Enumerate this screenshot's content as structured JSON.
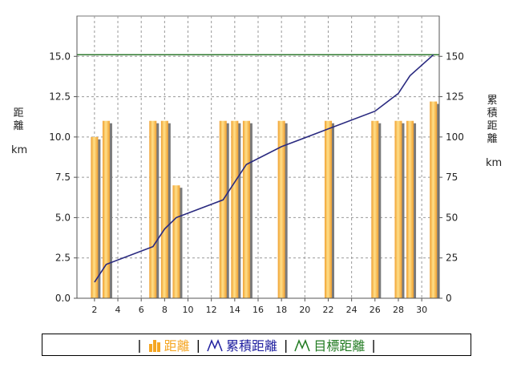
{
  "left_axis_label": {
    "chars": [
      "距",
      "離"
    ],
    "unit": "km"
  },
  "right_axis_label": {
    "chars": [
      "累",
      "積",
      "距",
      "離"
    ],
    "unit": "km"
  },
  "legend": {
    "separator": "|",
    "items": [
      {
        "label": "距離",
        "icon": "bar-chart-icon",
        "color": "#f5a623"
      },
      {
        "label": "累積距離",
        "icon": "line-chart-icon",
        "color": "#2020a0"
      },
      {
        "label": "目標距離",
        "icon": "line-chart-icon",
        "color": "#207a20"
      }
    ]
  },
  "chart_data": {
    "type": "bar+line",
    "x_ticks": [
      "2",
      "4",
      "6",
      "8",
      "10",
      "12",
      "14",
      "16",
      "18",
      "20",
      "22",
      "24",
      "26",
      "28",
      "30"
    ],
    "xlim": [
      0.5,
      31.5
    ],
    "left_axis": {
      "ylim": [
        0,
        17.5
      ],
      "ticks": [
        "0.0",
        "2.5",
        "5.0",
        "7.5",
        "10.0",
        "12.5",
        "15.0"
      ]
    },
    "right_axis": {
      "ylim": [
        0,
        175
      ],
      "ticks": [
        "0",
        "25",
        "50",
        "75",
        "100",
        "125",
        "150"
      ]
    },
    "grid": true,
    "bars": {
      "name": "距離",
      "color": "#f5a623",
      "points": [
        {
          "x": 2,
          "y": 10
        },
        {
          "x": 3,
          "y": 11
        },
        {
          "x": 7,
          "y": 11
        },
        {
          "x": 8,
          "y": 11
        },
        {
          "x": 9,
          "y": 7
        },
        {
          "x": 13,
          "y": 11
        },
        {
          "x": 14,
          "y": 11
        },
        {
          "x": 15,
          "y": 11
        },
        {
          "x": 18,
          "y": 11
        },
        {
          "x": 22,
          "y": 11
        },
        {
          "x": 26,
          "y": 11
        },
        {
          "x": 28,
          "y": 11
        },
        {
          "x": 29,
          "y": 11
        },
        {
          "x": 31,
          "y": 12.2
        }
      ]
    },
    "cumulative": {
      "name": "累積距離",
      "color": "#2a2a80",
      "points": [
        {
          "x": 2,
          "y": 10
        },
        {
          "x": 3,
          "y": 21
        },
        {
          "x": 7,
          "y": 32
        },
        {
          "x": 8,
          "y": 43
        },
        {
          "x": 9,
          "y": 50
        },
        {
          "x": 13,
          "y": 61
        },
        {
          "x": 14,
          "y": 72
        },
        {
          "x": 15,
          "y": 83
        },
        {
          "x": 18,
          "y": 94
        },
        {
          "x": 22,
          "y": 105
        },
        {
          "x": 26,
          "y": 116
        },
        {
          "x": 28,
          "y": 127
        },
        {
          "x": 29,
          "y": 138
        },
        {
          "x": 31,
          "y": 151
        }
      ]
    },
    "target": {
      "name": "目標距離",
      "color": "#2f7a2f",
      "value": 151
    }
  }
}
